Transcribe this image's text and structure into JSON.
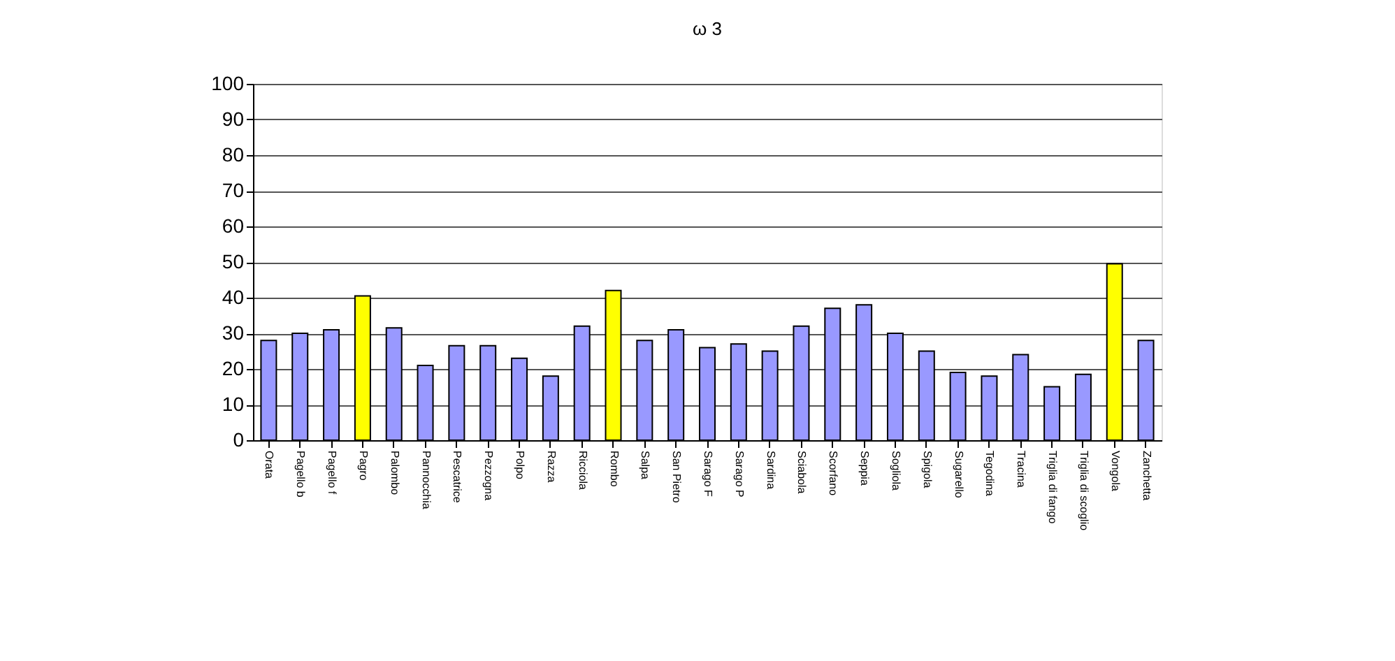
{
  "chart_data": {
    "type": "bar",
    "title": "ω 3",
    "categories": [
      "Orata",
      "Pagello b",
      "Pagello f",
      "Pagro",
      "Palombo",
      "Pannocchia",
      "Pescatrice",
      "Pezzogna",
      "Polpo",
      "Razza",
      "Ricciola",
      "Rombo",
      "Salpa",
      "San Pietro",
      "Sarago F",
      "Sarago P",
      "Sardina",
      "Sciabola",
      "Scorfano",
      "Seppia",
      "Sogliola",
      "Spigola",
      "Sugarello",
      "Tegodina",
      "Tracina",
      "Triglia di fango",
      "Triglia di scoglio",
      "Vongola",
      "Zanchetta"
    ],
    "values": [
      28,
      30,
      31,
      40.5,
      31.5,
      21,
      26.5,
      26.5,
      23,
      18,
      32,
      42,
      28,
      31,
      26,
      27,
      25,
      32,
      37,
      38,
      30,
      25,
      19,
      18,
      24,
      15,
      18.5,
      49.5,
      28
    ],
    "colors": [
      "#9999ff",
      "#9999ff",
      "#9999ff",
      "#ffff00",
      "#9999ff",
      "#9999ff",
      "#9999ff",
      "#9999ff",
      "#9999ff",
      "#9999ff",
      "#9999ff",
      "#ffff00",
      "#9999ff",
      "#9999ff",
      "#9999ff",
      "#9999ff",
      "#9999ff",
      "#9999ff",
      "#9999ff",
      "#9999ff",
      "#9999ff",
      "#9999ff",
      "#9999ff",
      "#9999ff",
      "#9999ff",
      "#9999ff",
      "#9999ff",
      "#ffff00",
      "#9999ff"
    ],
    "ylim": [
      0,
      100
    ],
    "yticks": [
      0,
      10,
      20,
      30,
      40,
      50,
      60,
      70,
      80,
      90,
      100
    ],
    "grid": "y",
    "legend": false
  }
}
